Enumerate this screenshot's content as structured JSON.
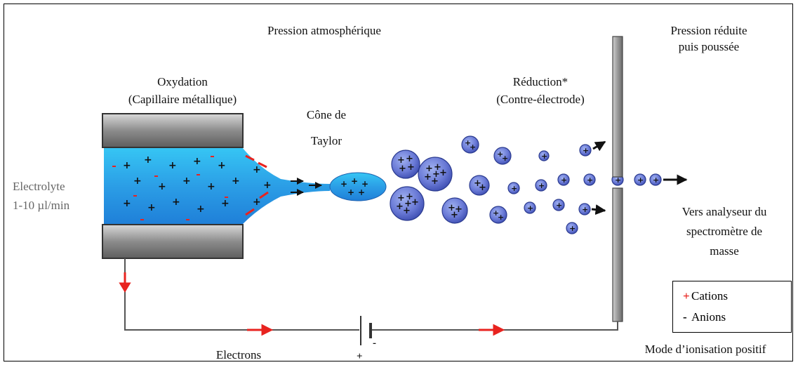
{
  "labels": {
    "atmospheric_pressure": "Pression  atmosphérique",
    "reduced_pressure_line1": "Pression  réduite",
    "reduced_pressure_line2": "puis poussée",
    "oxidation_line1": "Oxydation",
    "oxidation_line2": "(Capillaire métallique)",
    "taylor_line1": "Cône de",
    "taylor_line2": "Taylor",
    "reduction_line1": "Réduction*",
    "reduction_line2": "(Contre-électrode)",
    "electrolyte_line1": "Electrolyte",
    "electrolyte_line2": "1-10 µl/min",
    "analyzer_line1": "Vers analyseur  du",
    "analyzer_line2": "spectromètre de",
    "analyzer_line3": "masse",
    "electrons": "Electrons",
    "ionization_mode": "Mode d’ionisation positif",
    "battery_minus": "-",
    "battery_plus": "+"
  },
  "legend": {
    "cation_symbol": "+",
    "cation_label": "Cations",
    "anion_symbol": "-",
    "anion_label": "Anions"
  },
  "colors": {
    "cation_red": "#e8231f",
    "liquid_blue": "#2aa7e8",
    "droplet_blue": "#6f7fd6",
    "capillary_gray": "#8a8a8a"
  }
}
